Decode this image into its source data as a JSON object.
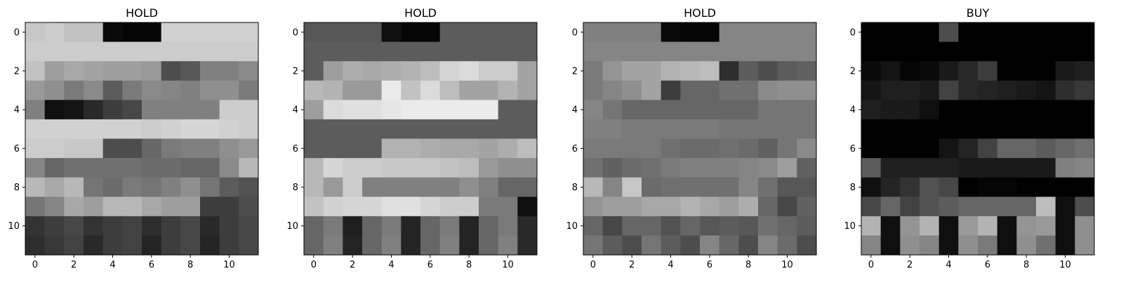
{
  "chart_data": [
    {
      "type": "heatmap",
      "title": "HOLD",
      "colormap": "gray",
      "x_ticks": [
        "0",
        "2",
        "4",
        "6",
        "8",
        "10"
      ],
      "y_ticks": [
        "0",
        "2",
        "4",
        "6",
        "8",
        "10"
      ],
      "values": [
        [
          0.78,
          0.8,
          0.76,
          0.76,
          0.04,
          0.02,
          0.02,
          0.82,
          0.82,
          0.82,
          0.82,
          0.82
        ],
        [
          0.8,
          0.8,
          0.8,
          0.8,
          0.8,
          0.8,
          0.8,
          0.8,
          0.8,
          0.8,
          0.8,
          0.8
        ],
        [
          0.76,
          0.62,
          0.66,
          0.64,
          0.62,
          0.62,
          0.6,
          0.3,
          0.34,
          0.5,
          0.5,
          0.54
        ],
        [
          0.6,
          0.56,
          0.48,
          0.54,
          0.36,
          0.48,
          0.54,
          0.52,
          0.5,
          0.56,
          0.56,
          0.48
        ],
        [
          0.5,
          0.06,
          0.08,
          0.16,
          0.24,
          0.28,
          0.5,
          0.5,
          0.5,
          0.5,
          0.8,
          0.8
        ],
        [
          0.82,
          0.82,
          0.82,
          0.82,
          0.82,
          0.82,
          0.8,
          0.82,
          0.84,
          0.84,
          0.82,
          0.8
        ],
        [
          0.8,
          0.8,
          0.78,
          0.78,
          0.3,
          0.3,
          0.4,
          0.48,
          0.5,
          0.5,
          0.56,
          0.6
        ],
        [
          0.52,
          0.4,
          0.44,
          0.44,
          0.44,
          0.44,
          0.42,
          0.42,
          0.4,
          0.4,
          0.54,
          0.72
        ],
        [
          0.72,
          0.66,
          0.72,
          0.46,
          0.42,
          0.48,
          0.46,
          0.5,
          0.56,
          0.46,
          0.36,
          0.32
        ],
        [
          0.46,
          0.52,
          0.66,
          0.62,
          0.72,
          0.72,
          0.66,
          0.62,
          0.62,
          0.24,
          0.24,
          0.3
        ],
        [
          0.2,
          0.24,
          0.28,
          0.2,
          0.24,
          0.26,
          0.18,
          0.24,
          0.28,
          0.16,
          0.24,
          0.28
        ],
        [
          0.18,
          0.22,
          0.26,
          0.16,
          0.24,
          0.26,
          0.14,
          0.24,
          0.28,
          0.14,
          0.24,
          0.28
        ]
      ]
    },
    {
      "type": "heatmap",
      "title": "HOLD",
      "colormap": "gray",
      "x_ticks": [
        "0",
        "2",
        "4",
        "6",
        "8",
        "10"
      ],
      "y_ticks": [
        "0",
        "2",
        "4",
        "6",
        "8",
        "10"
      ],
      "values": [
        [
          0.34,
          0.34,
          0.34,
          0.34,
          0.06,
          0.02,
          0.02,
          0.36,
          0.36,
          0.36,
          0.36,
          0.36
        ],
        [
          0.36,
          0.36,
          0.36,
          0.36,
          0.36,
          0.36,
          0.36,
          0.36,
          0.36,
          0.36,
          0.36,
          0.36
        ],
        [
          0.36,
          0.62,
          0.68,
          0.66,
          0.68,
          0.7,
          0.74,
          0.84,
          0.86,
          0.8,
          0.8,
          0.64
        ],
        [
          0.72,
          0.7,
          0.6,
          0.6,
          0.92,
          0.76,
          0.86,
          0.74,
          0.64,
          0.64,
          0.7,
          0.64
        ],
        [
          0.62,
          0.86,
          0.88,
          0.88,
          0.9,
          0.92,
          0.92,
          0.92,
          0.92,
          0.92,
          0.36,
          0.36
        ],
        [
          0.36,
          0.36,
          0.36,
          0.36,
          0.36,
          0.36,
          0.36,
          0.36,
          0.36,
          0.36,
          0.36,
          0.36
        ],
        [
          0.36,
          0.36,
          0.36,
          0.36,
          0.7,
          0.7,
          0.68,
          0.66,
          0.66,
          0.64,
          0.68,
          0.74
        ],
        [
          0.72,
          0.84,
          0.8,
          0.8,
          0.78,
          0.78,
          0.78,
          0.76,
          0.74,
          0.6,
          0.56,
          0.56
        ],
        [
          0.72,
          0.6,
          0.8,
          0.5,
          0.5,
          0.5,
          0.5,
          0.5,
          0.56,
          0.5,
          0.4,
          0.4
        ],
        [
          0.76,
          0.82,
          0.84,
          0.84,
          0.88,
          0.88,
          0.84,
          0.8,
          0.8,
          0.48,
          0.48,
          0.06
        ],
        [
          0.4,
          0.48,
          0.12,
          0.4,
          0.48,
          0.14,
          0.4,
          0.48,
          0.14,
          0.4,
          0.48,
          0.16
        ],
        [
          0.4,
          0.5,
          0.14,
          0.4,
          0.5,
          0.14,
          0.4,
          0.5,
          0.14,
          0.4,
          0.5,
          0.16
        ]
      ]
    },
    {
      "type": "heatmap",
      "title": "HOLD",
      "colormap": "gray",
      "x_ticks": [
        "0",
        "2",
        "4",
        "6",
        "8",
        "10"
      ],
      "y_ticks": [
        "0",
        "2",
        "4",
        "6",
        "8",
        "10"
      ],
      "values": [
        [
          0.5,
          0.5,
          0.5,
          0.5,
          0.04,
          0.02,
          0.02,
          0.52,
          0.52,
          0.52,
          0.52,
          0.52
        ],
        [
          0.52,
          0.52,
          0.52,
          0.52,
          0.52,
          0.52,
          0.52,
          0.52,
          0.52,
          0.52,
          0.52,
          0.52
        ],
        [
          0.48,
          0.58,
          0.64,
          0.64,
          0.7,
          0.72,
          0.74,
          0.18,
          0.36,
          0.3,
          0.36,
          0.38
        ],
        [
          0.48,
          0.52,
          0.56,
          0.64,
          0.24,
          0.4,
          0.4,
          0.44,
          0.44,
          0.54,
          0.56,
          0.56
        ],
        [
          0.52,
          0.46,
          0.4,
          0.4,
          0.4,
          0.4,
          0.4,
          0.4,
          0.4,
          0.46,
          0.46,
          0.46
        ],
        [
          0.5,
          0.5,
          0.48,
          0.48,
          0.48,
          0.48,
          0.48,
          0.46,
          0.46,
          0.46,
          0.46,
          0.46
        ],
        [
          0.48,
          0.48,
          0.48,
          0.48,
          0.44,
          0.42,
          0.42,
          0.44,
          0.42,
          0.38,
          0.46,
          0.54
        ],
        [
          0.44,
          0.38,
          0.42,
          0.44,
          0.48,
          0.5,
          0.5,
          0.5,
          0.52,
          0.54,
          0.62,
          0.38
        ],
        [
          0.72,
          0.52,
          0.78,
          0.42,
          0.44,
          0.44,
          0.44,
          0.44,
          0.52,
          0.44,
          0.34,
          0.34
        ],
        [
          0.58,
          0.62,
          0.62,
          0.66,
          0.66,
          0.7,
          0.66,
          0.62,
          0.68,
          0.4,
          0.28,
          0.38
        ],
        [
          0.4,
          0.28,
          0.4,
          0.4,
          0.32,
          0.4,
          0.34,
          0.36,
          0.34,
          0.44,
          0.4,
          0.36
        ],
        [
          0.46,
          0.36,
          0.3,
          0.46,
          0.36,
          0.3,
          0.52,
          0.4,
          0.3,
          0.52,
          0.42,
          0.3
        ]
      ]
    },
    {
      "type": "heatmap",
      "title": "BUY",
      "colormap": "gray",
      "x_ticks": [
        "0",
        "2",
        "4",
        "6",
        "8",
        "10"
      ],
      "y_ticks": [
        "0",
        "2",
        "4",
        "6",
        "8",
        "10"
      ],
      "values": [
        [
          0.0,
          0.0,
          0.0,
          0.0,
          0.3,
          0.0,
          0.0,
          0.0,
          0.0,
          0.0,
          0.0,
          0.0
        ],
        [
          0.0,
          0.0,
          0.0,
          0.0,
          0.0,
          0.0,
          0.0,
          0.0,
          0.0,
          0.0,
          0.0,
          0.0
        ],
        [
          0.04,
          0.08,
          0.02,
          0.04,
          0.1,
          0.16,
          0.24,
          0.0,
          0.0,
          0.0,
          0.1,
          0.12
        ],
        [
          0.08,
          0.12,
          0.12,
          0.1,
          0.26,
          0.16,
          0.14,
          0.12,
          0.1,
          0.08,
          0.18,
          0.22
        ],
        [
          0.12,
          0.1,
          0.1,
          0.06,
          0.0,
          0.0,
          0.0,
          0.0,
          0.0,
          0.0,
          0.0,
          0.0
        ],
        [
          0.0,
          0.0,
          0.0,
          0.0,
          0.0,
          0.0,
          0.0,
          0.0,
          0.0,
          0.0,
          0.0,
          0.0
        ],
        [
          0.0,
          0.0,
          0.0,
          0.0,
          0.08,
          0.14,
          0.26,
          0.4,
          0.4,
          0.36,
          0.4,
          0.44
        ],
        [
          0.36,
          0.12,
          0.12,
          0.12,
          0.12,
          0.1,
          0.1,
          0.1,
          0.1,
          0.1,
          0.5,
          0.52
        ],
        [
          0.06,
          0.14,
          0.2,
          0.32,
          0.28,
          0.0,
          0.02,
          0.02,
          0.0,
          0.0,
          0.0,
          0.0
        ],
        [
          0.28,
          0.4,
          0.26,
          0.32,
          0.36,
          0.4,
          0.4,
          0.4,
          0.4,
          0.74,
          0.06,
          0.3
        ],
        [
          0.7,
          0.06,
          0.58,
          0.7,
          0.06,
          0.6,
          0.7,
          0.06,
          0.58,
          0.6,
          0.06,
          0.56
        ],
        [
          0.52,
          0.06,
          0.56,
          0.52,
          0.06,
          0.56,
          0.48,
          0.06,
          0.56,
          0.44,
          0.06,
          0.56
        ]
      ]
    }
  ]
}
